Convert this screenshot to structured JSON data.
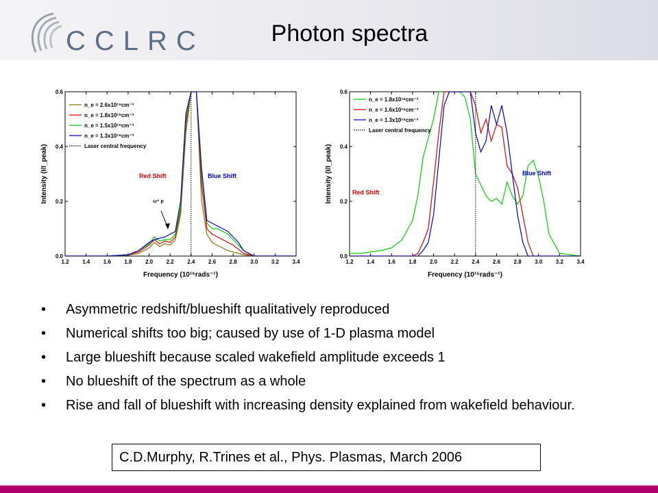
{
  "header": {
    "logo_text": "CCLRC",
    "title": "Photon spectra"
  },
  "colors": {
    "olive": "#807a00",
    "red": "#e00000",
    "green": "#00d000",
    "blue": "#0000cc",
    "footer": "#b0006d"
  },
  "chart_data": [
    {
      "type": "line",
      "xlabel": "Frequency (10¹⁵rads⁻¹)",
      "ylabel": "Intensity (I/I_peak)",
      "xlim": [
        1.2,
        3.4
      ],
      "ylim": [
        0,
        0.6
      ],
      "xticks": [
        "1.2",
        "1.4",
        "1.6",
        "1.8",
        "2.0",
        "2.2",
        "2.4",
        "2.6",
        "2.8",
        "3.0",
        "3.2",
        "3.4"
      ],
      "yticks": [
        "0.0",
        "0.2",
        "0.4",
        "0.6"
      ],
      "legend_position": "top-left",
      "legend": [
        "n_e = 2.6x10¹⁹cm⁻³",
        "n_e = 1.8x10¹⁹cm⁻³",
        "n_e = 1.5x10¹⁹cm⁻³",
        "n_e = 1.3x10¹⁹cm⁻³",
        "Laser central frequency"
      ],
      "annotations": {
        "red_shift": "Red Shift",
        "blue_shift": "Blue Shift",
        "omega_p": "ω⁺ p"
      },
      "laser_frequency": 2.4,
      "series": [
        {
          "color": "#807a00",
          "x": [
            1.2,
            1.6,
            1.8,
            1.9,
            2.0,
            2.05,
            2.1,
            2.15,
            2.2,
            2.25,
            2.3,
            2.35,
            2.4,
            2.42,
            2.45,
            2.5,
            2.55,
            2.6,
            2.65,
            2.7,
            2.75,
            2.8,
            2.85,
            2.9,
            3.0,
            3.4
          ],
          "y": [
            0,
            0,
            0.003,
            0.01,
            0.03,
            0.05,
            0.035,
            0.045,
            0.04,
            0.06,
            0.15,
            0.45,
            0.6,
            0.6,
            0.6,
            0.2,
            0.08,
            0.05,
            0.04,
            0.03,
            0.02,
            0.015,
            0.01,
            0.005,
            0,
            0
          ]
        },
        {
          "color": "#e00000",
          "x": [
            1.2,
            1.6,
            1.8,
            1.9,
            2.0,
            2.05,
            2.1,
            2.15,
            2.2,
            2.25,
            2.3,
            2.35,
            2.4,
            2.42,
            2.45,
            2.5,
            2.55,
            2.6,
            2.65,
            2.7,
            2.75,
            2.8,
            2.85,
            2.9,
            3.0,
            3.4
          ],
          "y": [
            0,
            0,
            0.005,
            0.015,
            0.04,
            0.06,
            0.045,
            0.055,
            0.05,
            0.07,
            0.17,
            0.48,
            0.6,
            0.6,
            0.6,
            0.26,
            0.1,
            0.08,
            0.07,
            0.06,
            0.05,
            0.04,
            0.025,
            0.01,
            0,
            0
          ]
        },
        {
          "color": "#00d000",
          "x": [
            1.2,
            1.6,
            1.8,
            1.9,
            2.0,
            2.05,
            2.1,
            2.15,
            2.2,
            2.25,
            2.3,
            2.35,
            2.4,
            2.42,
            2.45,
            2.5,
            2.55,
            2.6,
            2.65,
            2.7,
            2.75,
            2.8,
            2.85,
            2.9,
            3.0,
            3.4
          ],
          "y": [
            0,
            0,
            0.005,
            0.02,
            0.045,
            0.07,
            0.055,
            0.06,
            0.06,
            0.08,
            0.18,
            0.5,
            0.6,
            0.6,
            0.6,
            0.3,
            0.12,
            0.1,
            0.1,
            0.09,
            0.08,
            0.06,
            0.04,
            0.02,
            0,
            0
          ]
        },
        {
          "color": "#0000cc",
          "x": [
            1.2,
            1.6,
            1.8,
            1.9,
            2.0,
            2.05,
            2.1,
            2.15,
            2.2,
            2.25,
            2.3,
            2.35,
            2.4,
            2.42,
            2.45,
            2.5,
            2.55,
            2.6,
            2.65,
            2.7,
            2.75,
            2.8,
            2.85,
            2.9,
            3.0,
            3.4
          ],
          "y": [
            0,
            0,
            0.005,
            0.02,
            0.05,
            0.06,
            0.065,
            0.07,
            0.08,
            0.09,
            0.2,
            0.52,
            0.6,
            0.6,
            0.6,
            0.32,
            0.13,
            0.12,
            0.11,
            0.1,
            0.09,
            0.07,
            0.05,
            0.02,
            0,
            0
          ]
        }
      ]
    },
    {
      "type": "line",
      "xlabel": "Frequency (10¹⁵rads⁻¹)",
      "ylabel": "Intensity (I/I_peak)",
      "xlim": [
        1.2,
        3.4
      ],
      "ylim": [
        0,
        0.6
      ],
      "xticks": [
        "1.2",
        "1.4",
        "1.6",
        "1.8",
        "2.0",
        "2.2",
        "2.4",
        "2.6",
        "2.8",
        "3.0",
        "3.2",
        "3.4"
      ],
      "yticks": [
        "0.0",
        "0.2",
        "0.4",
        "0.6"
      ],
      "legend_position": "top-left",
      "legend": [
        "n_e = 1.8x10¹⁸cm⁻³",
        "n_e = 1.6x10¹⁸cm⁻³",
        "n_e = 1.3x10¹⁸cm⁻³",
        "Laser central frequency"
      ],
      "annotations": {
        "red_shift": "Red Shift",
        "blue_shift": "Blue Shift"
      },
      "laser_frequency": 2.4,
      "series": [
        {
          "color": "#00d000",
          "x": [
            1.2,
            1.3,
            1.4,
            1.5,
            1.6,
            1.7,
            1.8,
            1.85,
            1.9,
            2.0,
            2.05,
            2.1,
            2.15,
            2.2,
            2.25,
            2.3,
            2.35,
            2.4,
            2.45,
            2.5,
            2.55,
            2.6,
            2.65,
            2.7,
            2.75,
            2.8,
            2.85,
            2.9,
            2.95,
            3.0,
            3.05,
            3.1,
            3.2,
            3.4
          ],
          "y": [
            0.01,
            0.01,
            0.015,
            0.02,
            0.03,
            0.06,
            0.13,
            0.22,
            0.36,
            0.5,
            0.6,
            0.6,
            0.6,
            0.6,
            0.6,
            0.58,
            0.5,
            0.3,
            0.26,
            0.22,
            0.2,
            0.21,
            0.19,
            0.27,
            0.22,
            0.19,
            0.22,
            0.33,
            0.35,
            0.29,
            0.2,
            0.08,
            0.01,
            0.0
          ]
        },
        {
          "color": "#e00000",
          "x": [
            1.2,
            1.8,
            1.85,
            1.9,
            1.95,
            2.0,
            2.05,
            2.1,
            2.15,
            2.2,
            2.3,
            2.35,
            2.4,
            2.45,
            2.5,
            2.55,
            2.6,
            2.65,
            2.7,
            2.75,
            2.8,
            2.85,
            2.9,
            2.95,
            3.4
          ],
          "y": [
            0,
            0,
            0.01,
            0.05,
            0.1,
            0.27,
            0.45,
            0.6,
            0.6,
            0.6,
            0.6,
            0.6,
            0.55,
            0.45,
            0.5,
            0.42,
            0.48,
            0.47,
            0.33,
            0.3,
            0.25,
            0.15,
            0.05,
            0,
            0
          ]
        },
        {
          "color": "#0000cc",
          "x": [
            1.2,
            1.85,
            1.9,
            1.95,
            2.0,
            2.05,
            2.1,
            2.15,
            2.2,
            2.3,
            2.35,
            2.4,
            2.45,
            2.5,
            2.55,
            2.6,
            2.65,
            2.7,
            2.75,
            2.8,
            2.85,
            2.9,
            3.4
          ],
          "y": [
            0,
            0,
            0.02,
            0.05,
            0.15,
            0.35,
            0.55,
            0.6,
            0.6,
            0.6,
            0.6,
            0.45,
            0.38,
            0.42,
            0.55,
            0.48,
            0.55,
            0.45,
            0.3,
            0.15,
            0.05,
            0,
            0
          ]
        }
      ]
    }
  ],
  "bullets": [
    "Asymmetric redshift/blueshift qualitatively reproduced",
    "Numerical shifts too big; caused by use of 1-D plasma model",
    "Large blueshift because scaled wakefield amplitude exceeds 1",
    "No blueshift of the spectrum as a whole",
    "Rise and fall of blueshift with increasing density explained from wakefield behaviour."
  ],
  "citation": "C.D.Murphy, R.Trines et al.,  Phys. Plasmas, March 2006"
}
